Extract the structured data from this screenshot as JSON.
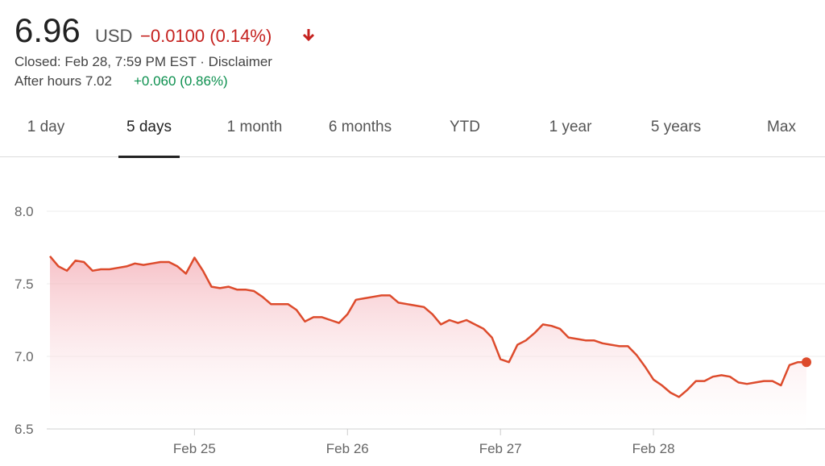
{
  "quote": {
    "price": "6.96",
    "currency": "USD",
    "change": "−0.0100 (0.14%)",
    "status": "Closed: Feb 28, 7:59 PM EST · Disclaimer",
    "after_hours_label": "After hours 7.02",
    "after_hours_change": "+0.060 (0.86%)"
  },
  "tabs": [
    "1 day",
    "5 days",
    "1 month",
    "6 months",
    "YTD",
    "1 year",
    "5 years",
    "Max"
  ],
  "selected_tab": 1,
  "chart_data": {
    "type": "line",
    "categories": [
      null,
      null,
      null,
      null,
      null,
      null,
      null,
      null,
      null,
      null,
      null,
      null,
      null,
      null,
      null,
      null,
      null,
      "Feb 25",
      null,
      null,
      null,
      null,
      null,
      null,
      null,
      null,
      null,
      null,
      null,
      null,
      null,
      null,
      null,
      null,
      null,
      "Feb 26",
      null,
      null,
      null,
      null,
      null,
      null,
      null,
      null,
      null,
      null,
      null,
      null,
      null,
      null,
      null,
      null,
      null,
      "Feb 27",
      null,
      null,
      null,
      null,
      null,
      null,
      null,
      null,
      null,
      null,
      null,
      null,
      null,
      null,
      null,
      null,
      null,
      "Feb 28",
      null,
      null,
      null,
      null,
      null,
      null,
      null,
      null,
      null,
      null,
      null,
      null,
      null,
      null,
      null,
      null,
      null,
      null
    ],
    "series": [
      {
        "color": "#dd4b2c",
        "values": [
          7.69,
          7.62,
          7.59,
          7.66,
          7.65,
          7.59,
          7.6,
          7.6,
          7.61,
          7.62,
          7.64,
          7.63,
          7.64,
          7.65,
          7.65,
          7.62,
          7.57,
          7.68,
          7.59,
          7.48,
          7.47,
          7.48,
          7.46,
          7.46,
          7.45,
          7.41,
          7.36,
          7.36,
          7.36,
          7.32,
          7.24,
          7.27,
          7.27,
          7.25,
          7.23,
          7.29,
          7.39,
          7.4,
          7.41,
          7.42,
          7.42,
          7.37,
          7.36,
          7.35,
          7.34,
          7.29,
          7.22,
          7.25,
          7.23,
          7.25,
          7.22,
          7.19,
          7.13,
          6.98,
          6.96,
          7.08,
          7.11,
          7.16,
          7.22,
          7.21,
          7.19,
          7.13,
          7.12,
          7.11,
          7.11,
          7.09,
          7.08,
          7.07,
          7.07,
          7.01,
          6.93,
          6.84,
          6.8,
          6.75,
          6.72,
          6.77,
          6.83,
          6.83,
          6.86,
          6.87,
          6.86,
          6.82,
          6.81,
          6.82,
          6.83,
          6.83,
          6.8,
          6.94,
          6.96,
          6.96
        ]
      }
    ],
    "ylim": [
      6.5,
      8.1
    ],
    "yticks": [
      {
        "value": 6.5,
        "label": "6.5"
      },
      {
        "value": 7,
        "label": "7.0"
      },
      7.5,
      {
        "value": 8,
        "label": "8.0"
      }
    ],
    "grid": true
  }
}
